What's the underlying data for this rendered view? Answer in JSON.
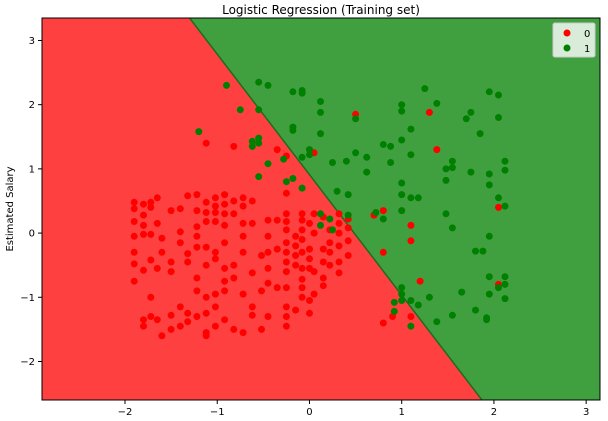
{
  "chart_data": {
    "type": "scatter",
    "title": "Logistic Regression (Training set)",
    "xlabel": "",
    "ylabel": "Estimated Salary",
    "xlim": [
      -2.9,
      3.15
    ],
    "ylim": [
      -2.6,
      3.35
    ],
    "xticks": [
      -2,
      -1,
      0,
      1,
      2,
      3
    ],
    "yticks": [
      -2,
      -1,
      0,
      1,
      2,
      3
    ],
    "grid": false,
    "legend_position": "top-right",
    "decision_boundary": {
      "description": "linear boundary",
      "p1": [
        -1.3,
        3.35
      ],
      "p2": [
        1.87,
        -2.6
      ],
      "region_colors": {
        "0": "#ff4040",
        "1": "#40a040"
      },
      "line_color": "#1f6b1f"
    },
    "series": [
      {
        "name": "0",
        "color": "#ff0000",
        "points": [
          [
            -1.9,
            0.48
          ],
          [
            -1.9,
            0.38
          ],
          [
            -1.9,
            0.18
          ],
          [
            -1.9,
            -0.05
          ],
          [
            -1.9,
            -0.3
          ],
          [
            -1.9,
            -0.48
          ],
          [
            -1.9,
            -0.75
          ],
          [
            -1.8,
            0.45
          ],
          [
            -1.8,
            0.28
          ],
          [
            -1.8,
            0.12
          ],
          [
            -1.8,
            -0.02
          ],
          [
            -1.8,
            -0.58
          ],
          [
            -1.8,
            -1.35
          ],
          [
            -1.8,
            -1.45
          ],
          [
            -1.72,
            0.48
          ],
          [
            -1.72,
            0.4
          ],
          [
            -1.72,
            -0.02
          ],
          [
            -1.72,
            -0.42
          ],
          [
            -1.72,
            -1.0
          ],
          [
            -1.72,
            -1.3
          ],
          [
            -1.65,
            0.55
          ],
          [
            -1.65,
            0.15
          ],
          [
            -1.65,
            -0.55
          ],
          [
            -1.65,
            -1.35
          ],
          [
            -1.6,
            -0.08
          ],
          [
            -1.6,
            -0.3
          ],
          [
            -1.6,
            -1.6
          ],
          [
            -1.5,
            0.35
          ],
          [
            -1.5,
            -0.45
          ],
          [
            -1.5,
            -0.6
          ],
          [
            -1.5,
            -1.28
          ],
          [
            -1.5,
            -1.5
          ],
          [
            -1.4,
            0.38
          ],
          [
            -1.4,
            0.02
          ],
          [
            -1.4,
            -0.15
          ],
          [
            -1.4,
            -1.15
          ],
          [
            -1.4,
            -1.45
          ],
          [
            -1.32,
            0.58
          ],
          [
            -1.32,
            -0.32
          ],
          [
            -1.32,
            -0.45
          ],
          [
            -1.32,
            -1.25
          ],
          [
            -1.32,
            -1.38
          ],
          [
            -1.22,
            0.6
          ],
          [
            -1.22,
            0.35
          ],
          [
            -1.22,
            0.1
          ],
          [
            -1.22,
            -0.05
          ],
          [
            -1.22,
            -0.22
          ],
          [
            -1.22,
            -0.7
          ],
          [
            -1.22,
            -0.9
          ],
          [
            -1.22,
            -1.3
          ],
          [
            -1.12,
            1.4
          ],
          [
            -1.12,
            0.48
          ],
          [
            -1.12,
            0.32
          ],
          [
            -1.12,
            0.18
          ],
          [
            -1.12,
            -0.22
          ],
          [
            -1.12,
            -0.5
          ],
          [
            -1.12,
            -1.0
          ],
          [
            -1.12,
            -1.25
          ],
          [
            -1.12,
            -1.55
          ],
          [
            -1.12,
            -1.6
          ],
          [
            -1.02,
            0.55
          ],
          [
            -1.02,
            0.42
          ],
          [
            -1.02,
            0.32
          ],
          [
            -1.02,
            0.18
          ],
          [
            -1.02,
            -0.3
          ],
          [
            -1.02,
            -0.4
          ],
          [
            -1.02,
            -0.95
          ],
          [
            -1.02,
            -1.15
          ],
          [
            -1.02,
            -1.45
          ],
          [
            -0.92,
            0.6
          ],
          [
            -0.92,
            0.45
          ],
          [
            -0.92,
            0.3
          ],
          [
            -0.92,
            0.12
          ],
          [
            -0.92,
            -0.15
          ],
          [
            -0.92,
            -0.55
          ],
          [
            -0.92,
            -0.75
          ],
          [
            -0.92,
            -0.9
          ],
          [
            -0.92,
            -1.35
          ],
          [
            -0.82,
            1.35
          ],
          [
            -0.82,
            0.5
          ],
          [
            -0.82,
            0.3
          ],
          [
            -0.82,
            -0.5
          ],
          [
            -0.82,
            -0.7
          ],
          [
            -0.82,
            -1.5
          ],
          [
            -0.72,
            0.55
          ],
          [
            -0.72,
            0.42
          ],
          [
            -0.72,
            0.15
          ],
          [
            -0.72,
            -0.05
          ],
          [
            -0.72,
            -0.3
          ],
          [
            -0.72,
            -0.95
          ],
          [
            -0.72,
            -1.55
          ],
          [
            -0.62,
            0.5
          ],
          [
            -0.62,
            0.15
          ],
          [
            -0.62,
            -0.62
          ],
          [
            -0.62,
            -1.15
          ],
          [
            -0.62,
            -1.28
          ],
          [
            -0.52,
            -0.35
          ],
          [
            -0.52,
            -0.9
          ],
          [
            -0.52,
            -1.5
          ],
          [
            -0.45,
            0.2
          ],
          [
            -0.45,
            -0.05
          ],
          [
            -0.45,
            -0.3
          ],
          [
            -0.45,
            -0.55
          ],
          [
            -0.45,
            -0.78
          ],
          [
            -0.45,
            -1.3
          ],
          [
            -0.35,
            1.3
          ],
          [
            -0.35,
            0.2
          ],
          [
            -0.35,
            -0.25
          ],
          [
            -0.35,
            -0.85
          ],
          [
            -0.25,
            1.2
          ],
          [
            -0.25,
            0.62
          ],
          [
            -0.25,
            0.3
          ],
          [
            -0.25,
            0.18
          ],
          [
            -0.25,
            0.05
          ],
          [
            -0.25,
            -0.15
          ],
          [
            -0.25,
            -0.3
          ],
          [
            -0.25,
            -0.45
          ],
          [
            -0.25,
            -0.6
          ],
          [
            -0.25,
            -0.85
          ],
          [
            -0.25,
            -1.15
          ],
          [
            -0.25,
            -1.3
          ],
          [
            -0.25,
            -1.45
          ],
          [
            -0.15,
            -0.05
          ],
          [
            -0.15,
            -0.2
          ],
          [
            -0.15,
            -0.35
          ],
          [
            -0.15,
            -0.5
          ],
          [
            -0.15,
            -1.2
          ],
          [
            -0.08,
            0.3
          ],
          [
            -0.08,
            0.2
          ],
          [
            -0.08,
            0.05
          ],
          [
            -0.08,
            -0.1
          ],
          [
            -0.08,
            -0.3
          ],
          [
            -0.08,
            -0.55
          ],
          [
            -0.08,
            -0.72
          ],
          [
            -0.08,
            -0.85
          ],
          [
            -0.08,
            -1.0
          ],
          [
            0.0,
            0.15
          ],
          [
            0.0,
            -0.25
          ],
          [
            0.0,
            -0.4
          ],
          [
            0.0,
            -0.55
          ],
          [
            0.0,
            -1.05
          ],
          [
            0.0,
            -1.25
          ],
          [
            0.05,
            1.25
          ],
          [
            0.05,
            0.3
          ],
          [
            0.05,
            0.0
          ],
          [
            0.05,
            -0.6
          ],
          [
            0.05,
            -0.95
          ],
          [
            0.15,
            0.25
          ],
          [
            0.15,
            -0.25
          ],
          [
            0.15,
            -0.45
          ],
          [
            0.15,
            -0.7
          ],
          [
            0.15,
            -0.82
          ],
          [
            0.22,
            0.05
          ],
          [
            0.22,
            -0.15
          ],
          [
            0.22,
            -0.3
          ],
          [
            0.22,
            -0.5
          ],
          [
            0.32,
            0.3
          ],
          [
            0.32,
            0.15
          ],
          [
            0.32,
            0.0
          ],
          [
            0.32,
            -0.2
          ],
          [
            0.32,
            -0.45
          ],
          [
            0.32,
            -0.62
          ],
          [
            0.42,
            0.22
          ],
          [
            0.42,
            0.08
          ],
          [
            0.42,
            -0.12
          ],
          [
            0.42,
            -0.35
          ],
          [
            0.5,
            1.85
          ],
          [
            0.7,
            0.28
          ],
          [
            0.8,
            0.35
          ],
          [
            0.8,
            -0.3
          ],
          [
            0.8,
            -1.4
          ],
          [
            0.9,
            -1.3
          ],
          [
            1.1,
            0.12
          ],
          [
            1.1,
            -0.12
          ],
          [
            1.1,
            -1.3
          ],
          [
            1.2,
            -0.75
          ],
          [
            1.3,
            1.88
          ],
          [
            1.38,
            1.3
          ],
          [
            2.05,
            0.4
          ],
          [
            2.05,
            -0.8
          ]
        ]
      },
      {
        "name": "1",
        "color": "#008000",
        "points": [
          [
            -1.2,
            1.58
          ],
          [
            -0.9,
            2.3
          ],
          [
            -0.75,
            1.92
          ],
          [
            -0.62,
            1.43
          ],
          [
            -0.62,
            1.35
          ],
          [
            -0.55,
            2.35
          ],
          [
            -0.55,
            1.92
          ],
          [
            -0.55,
            1.48
          ],
          [
            -0.55,
            1.4
          ],
          [
            -0.55,
            0.88
          ],
          [
            -0.45,
            2.3
          ],
          [
            -0.45,
            1.08
          ],
          [
            -0.28,
            1.15
          ],
          [
            -0.25,
            0.8
          ],
          [
            -0.18,
            2.2
          ],
          [
            -0.18,
            1.65
          ],
          [
            -0.18,
            1.6
          ],
          [
            -0.18,
            0.85
          ],
          [
            -0.08,
            2.22
          ],
          [
            -0.08,
            2.18
          ],
          [
            -0.08,
            1.18
          ],
          [
            -0.08,
            0.7
          ],
          [
            0.0,
            1.3
          ],
          [
            0.0,
            1.22
          ],
          [
            0.12,
            2.05
          ],
          [
            0.12,
            1.88
          ],
          [
            0.12,
            1.55
          ],
          [
            0.12,
            0.3
          ],
          [
            0.12,
            0.12
          ],
          [
            0.22,
            0.22
          ],
          [
            0.25,
            1.1
          ],
          [
            0.25,
            0.05
          ],
          [
            0.3,
            0.65
          ],
          [
            0.4,
            1.12
          ],
          [
            0.42,
            0.6
          ],
          [
            0.42,
            0.28
          ],
          [
            0.5,
            1.78
          ],
          [
            0.5,
            1.25
          ],
          [
            0.62,
            1.18
          ],
          [
            0.62,
            0.95
          ],
          [
            0.72,
            0.32
          ],
          [
            0.8,
            1.38
          ],
          [
            0.8,
            0.22
          ],
          [
            0.88,
            1.35
          ],
          [
            0.88,
            1.1
          ],
          [
            0.92,
            -1.08
          ],
          [
            0.92,
            -1.22
          ],
          [
            1.0,
            2.0
          ],
          [
            1.0,
            1.9
          ],
          [
            1.0,
            1.45
          ],
          [
            1.0,
            0.78
          ],
          [
            1.0,
            0.6
          ],
          [
            1.0,
            0.35
          ],
          [
            1.0,
            -0.85
          ],
          [
            1.0,
            -0.95
          ],
          [
            1.0,
            -1.05
          ],
          [
            1.1,
            1.62
          ],
          [
            1.1,
            1.22
          ],
          [
            1.1,
            0.55
          ],
          [
            1.1,
            -1.05
          ],
          [
            1.1,
            -1.45
          ],
          [
            1.18,
            0.55
          ],
          [
            1.18,
            -1.12
          ],
          [
            1.25,
            2.25
          ],
          [
            1.3,
            -1.0
          ],
          [
            1.38,
            2.02
          ],
          [
            1.38,
            -1.38
          ],
          [
            1.48,
            1.0
          ],
          [
            1.48,
            0.82
          ],
          [
            1.48,
            0.3
          ],
          [
            1.55,
            1.12
          ],
          [
            1.55,
            1.02
          ],
          [
            1.55,
            0.08
          ],
          [
            1.55,
            -1.28
          ],
          [
            1.65,
            -0.92
          ],
          [
            1.7,
            1.78
          ],
          [
            1.75,
            1.88
          ],
          [
            1.75,
            0.95
          ],
          [
            1.8,
            -0.28
          ],
          [
            1.8,
            -1.2
          ],
          [
            1.85,
            1.55
          ],
          [
            1.88,
            -0.28
          ],
          [
            1.92,
            -1.35
          ],
          [
            1.92,
            -1.32
          ],
          [
            1.95,
            2.2
          ],
          [
            1.95,
            0.92
          ],
          [
            1.95,
            0.75
          ],
          [
            1.95,
            -0.05
          ],
          [
            1.95,
            -0.68
          ],
          [
            1.95,
            -0.95
          ],
          [
            2.05,
            2.15
          ],
          [
            2.05,
            1.8
          ],
          [
            2.05,
            0.55
          ],
          [
            2.05,
            -0.85
          ],
          [
            2.12,
            1.12
          ],
          [
            2.12,
            0.98
          ],
          [
            2.12,
            0.42
          ],
          [
            2.12,
            -0.68
          ],
          [
            2.12,
            -0.8
          ],
          [
            2.12,
            -1.02
          ]
        ]
      }
    ]
  }
}
